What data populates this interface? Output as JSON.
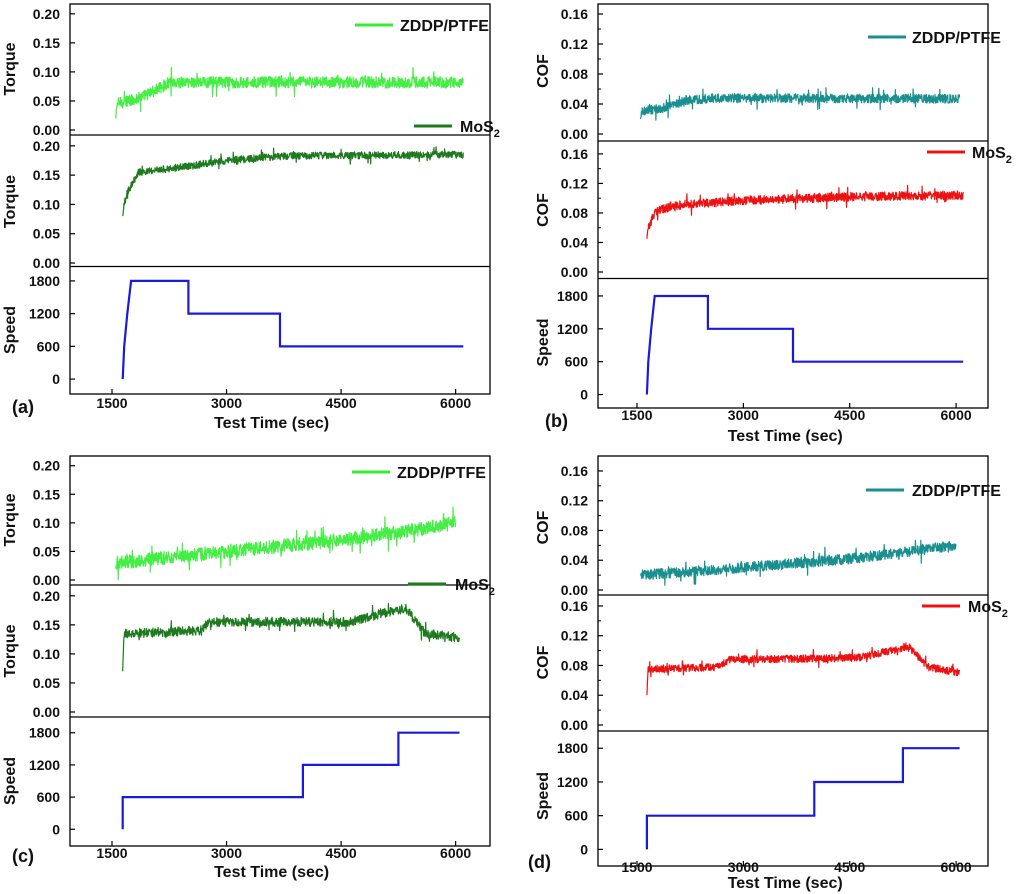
{
  "chart_data": [
    {
      "panel_label": "(a)",
      "type": "line",
      "xlabel": "Test Time (sec)",
      "xlim": [
        950,
        6450
      ],
      "xticks": [
        1500,
        3000,
        4500,
        6000
      ],
      "subplots": [
        {
          "ylabel": "Torque",
          "ylim": [
            0,
            0.21
          ],
          "yticks": [
            "0.00",
            "0.05",
            "0.10",
            "0.15",
            "0.20"
          ],
          "legend": "ZDDP/PTFE",
          "legend_color": "#33ee33",
          "color": "#44ee44",
          "x_start": 1550,
          "x_end": 6100,
          "profile": [
            [
              1550,
              0.045
            ],
            [
              1850,
              0.055
            ],
            [
              2100,
              0.07
            ],
            [
              2250,
              0.082
            ],
            [
              6100,
              0.082
            ]
          ],
          "noise": 0.01,
          "spike_start": 0.02
        },
        {
          "ylabel": "Torque",
          "ylim": [
            0,
            0.21
          ],
          "yticks": [
            "0.00",
            "0.05",
            "0.10",
            "0.15",
            "0.20"
          ],
          "legend": "MoS",
          "legend_sub": "2",
          "legend_color": "#1e7a1e",
          "color": "#1e7a1e",
          "x_start": 1640,
          "x_end": 6100,
          "profile": [
            [
              1640,
              0.09
            ],
            [
              1700,
              0.12
            ],
            [
              1850,
              0.155
            ],
            [
              2500,
              0.165
            ],
            [
              3000,
              0.175
            ],
            [
              3800,
              0.183
            ],
            [
              6100,
              0.185
            ]
          ],
          "noise": 0.006,
          "spike_start": 0.08
        },
        {
          "ylabel": "Speed",
          "ylim": [
            -200,
            2000
          ],
          "yticks": [
            "0",
            "600",
            "1200",
            "1800"
          ],
          "color": "#1a1add",
          "steps": [
            [
              1640,
              0
            ],
            [
              1660,
              600
            ],
            [
              1700,
              1200
            ],
            [
              1750,
              1800
            ],
            [
              2500,
              1800
            ],
            [
              2500,
              1200
            ],
            [
              3700,
              1200
            ],
            [
              3700,
              600
            ],
            [
              6100,
              600
            ]
          ]
        }
      ]
    },
    {
      "panel_label": "(b)",
      "type": "line",
      "xlabel": "Test Time (sec)",
      "xlim": [
        950,
        6450
      ],
      "xticks": [
        1500,
        3000,
        4500,
        6000
      ],
      "subplots": [
        {
          "ylabel": "COF",
          "ylim": [
            0,
            0.168
          ],
          "yticks": [
            "0.00",
            "0.04",
            "0.08",
            "0.12",
            "0.16"
          ],
          "yticks_extra": [
            "0.02",
            "0.06",
            "0.10",
            "0.14"
          ],
          "legend": "ZDDP/PTFE",
          "legend_color": "#1a8f8f",
          "color": "#1a8f8f",
          "x_start": 1550,
          "x_end": 6050,
          "profile": [
            [
              1550,
              0.03
            ],
            [
              1900,
              0.035
            ],
            [
              2200,
              0.045
            ],
            [
              2600,
              0.048
            ],
            [
              6050,
              0.047
            ]
          ],
          "noise": 0.006,
          "spike_start": 0.02
        },
        {
          "ylabel": "COF",
          "ylim": [
            0,
            0.168
          ],
          "yticks": [
            "0.00",
            "0.04",
            "0.08",
            "0.12",
            "0.16"
          ],
          "yticks_extra": [
            "0.02",
            "0.06",
            "0.10",
            "0.14"
          ],
          "legend": "MoS",
          "legend_sub": "2",
          "legend_color": "#ee1111",
          "color": "#ee1111",
          "x_start": 1640,
          "x_end": 6100,
          "profile": [
            [
              1640,
              0.055
            ],
            [
              1750,
              0.08
            ],
            [
              2000,
              0.09
            ],
            [
              3000,
              0.097
            ],
            [
              4500,
              0.102
            ],
            [
              6100,
              0.104
            ]
          ],
          "noise": 0.006,
          "spike_start": 0.045
        },
        {
          "ylabel": "Speed",
          "ylim": [
            -100,
            2000
          ],
          "yticks": [
            "0",
            "600",
            "1200",
            "1800"
          ],
          "color": "#1a1add",
          "steps": [
            [
              1640,
              0
            ],
            [
              1660,
              600
            ],
            [
              1700,
              1200
            ],
            [
              1750,
              1800
            ],
            [
              2500,
              1800
            ],
            [
              2500,
              1200
            ],
            [
              3700,
              1200
            ],
            [
              3700,
              600
            ],
            [
              6100,
              600
            ]
          ]
        }
      ]
    },
    {
      "panel_label": "(c)",
      "type": "line",
      "xlabel": "Test Time (sec)",
      "xlim": [
        950,
        6450
      ],
      "xticks": [
        1500,
        3000,
        4500,
        6000
      ],
      "subplots": [
        {
          "ylabel": "Torque",
          "ylim": [
            0,
            0.21
          ],
          "yticks": [
            "0.00",
            "0.05",
            "0.10",
            "0.15",
            "0.20"
          ],
          "legend": "ZDDP/PTFE",
          "legend_color": "#33ee33",
          "color": "#44ee44",
          "x_start": 1550,
          "x_end": 6000,
          "profile": [
            [
              1550,
              0.03
            ],
            [
              3000,
              0.05
            ],
            [
              4500,
              0.07
            ],
            [
              5500,
              0.088
            ],
            [
              6000,
              0.1
            ]
          ],
          "noise": 0.012,
          "spike_start": 0.02
        },
        {
          "ylabel": "Torque",
          "ylim": [
            0,
            0.21
          ],
          "yticks": [
            "0.00",
            "0.05",
            "0.10",
            "0.15",
            "0.20"
          ],
          "legend": "MoS",
          "legend_sub": "2",
          "legend_color": "#1e7a1e",
          "color": "#1e7a1e",
          "x_start": 1640,
          "x_end": 6050,
          "profile": [
            [
              1640,
              0.135
            ],
            [
              2650,
              0.14
            ],
            [
              2800,
              0.155
            ],
            [
              4600,
              0.155
            ],
            [
              5200,
              0.175
            ],
            [
              5350,
              0.178
            ],
            [
              5600,
              0.135
            ],
            [
              6050,
              0.128
            ]
          ],
          "noise": 0.008,
          "spike_start": 0.07
        },
        {
          "ylabel": "Speed",
          "ylim": [
            -200,
            2000
          ],
          "yticks": [
            "0",
            "600",
            "1200",
            "1800"
          ],
          "color": "#1a1add",
          "steps": [
            [
              1640,
              0
            ],
            [
              1640,
              600
            ],
            [
              4000,
              600
            ],
            [
              4000,
              1200
            ],
            [
              5250,
              1200
            ],
            [
              5250,
              1800
            ],
            [
              6050,
              1800
            ]
          ]
        }
      ]
    },
    {
      "panel_label": "(d)",
      "type": "line",
      "xlabel": "Test Time (sec)",
      "xlim": [
        950,
        6450
      ],
      "xticks": [
        1500,
        3000,
        4500,
        6000
      ],
      "subplots": [
        {
          "ylabel": "COF",
          "ylim": [
            0,
            0.168
          ],
          "yticks": [
            "0.00",
            "0.04",
            "0.08",
            "0.12",
            "0.16"
          ],
          "yticks_extra": [
            "0.02",
            "0.06",
            "0.10",
            "0.14"
          ],
          "legend": "ZDDP/PTFE",
          "legend_color": "#1a8f8f",
          "color": "#1a8f8f",
          "x_start": 1550,
          "x_end": 6000,
          "profile": [
            [
              1550,
              0.02
            ],
            [
              3000,
              0.03
            ],
            [
              4500,
              0.042
            ],
            [
              6000,
              0.06
            ]
          ],
          "noise": 0.007,
          "spike_start": 0.02
        },
        {
          "ylabel": "COF",
          "ylim": [
            0,
            0.168
          ],
          "yticks": [
            "0.00",
            "0.04",
            "0.08",
            "0.12",
            "0.16"
          ],
          "yticks_extra": [
            "0.02",
            "0.06",
            "0.10",
            "0.14"
          ],
          "legend": "MoS",
          "legend_sub": "2",
          "legend_color": "#ee1111",
          "color": "#ee1111",
          "x_start": 1640,
          "x_end": 6050,
          "profile": [
            [
              1640,
              0.075
            ],
            [
              2650,
              0.078
            ],
            [
              2800,
              0.088
            ],
            [
              4600,
              0.09
            ],
            [
              5200,
              0.102
            ],
            [
              5350,
              0.104
            ],
            [
              5600,
              0.078
            ],
            [
              6050,
              0.07
            ]
          ],
          "noise": 0.005,
          "spike_start": 0.04
        },
        {
          "ylabel": "Speed",
          "ylim": [
            -100,
            2000
          ],
          "yticks": [
            "0",
            "600",
            "1200",
            "1800"
          ],
          "color": "#1a1add",
          "steps": [
            [
              1640,
              0
            ],
            [
              1640,
              600
            ],
            [
              4000,
              600
            ],
            [
              4000,
              1200
            ],
            [
              5250,
              1200
            ],
            [
              5250,
              1800
            ],
            [
              6050,
              1800
            ]
          ]
        }
      ]
    }
  ]
}
